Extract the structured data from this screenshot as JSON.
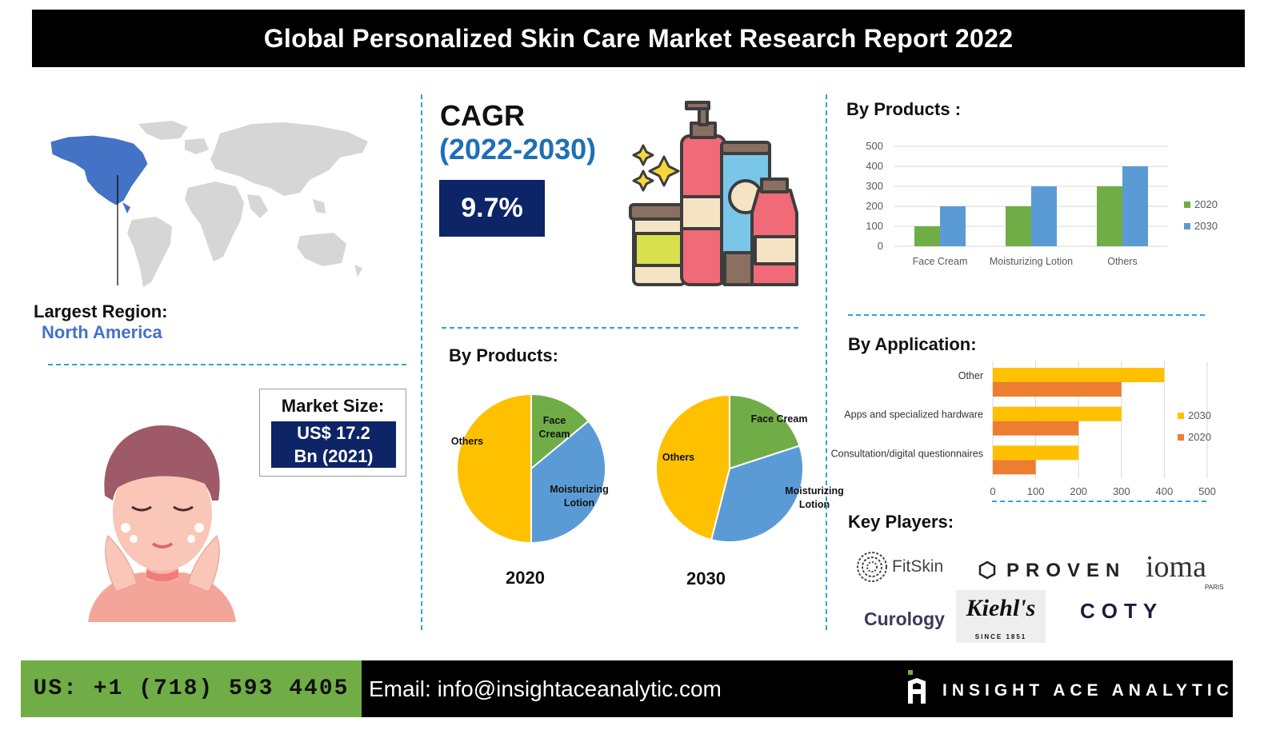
{
  "title": "Global Personalized Skin Care Market Research Report 2022",
  "region": {
    "label": "Largest Region:",
    "value": "North America"
  },
  "market": {
    "label": "Market Size:",
    "line1": "US$ 17.2",
    "line2": "Bn (2021)"
  },
  "cagr": {
    "label": "CAGR",
    "years": "(2022-2030)",
    "value": "9.7%"
  },
  "pies": {
    "title": "By Products:",
    "charts": [
      {
        "year": "2020",
        "slices": [
          {
            "label": "Face Cream",
            "value": 14,
            "color": "#70ad47"
          },
          {
            "label": "Moisturizing Lotion",
            "value": 36,
            "color": "#5b9bd5"
          },
          {
            "label": "Others",
            "value": 50,
            "color": "#ffc000"
          }
        ]
      },
      {
        "year": "2030",
        "slices": [
          {
            "label": "Face Cream",
            "value": 20,
            "color": "#70ad47"
          },
          {
            "label": "Moisturizing Lotion",
            "value": 34,
            "color": "#5b9bd5"
          },
          {
            "label": "Others",
            "value": 46,
            "color": "#ffc000"
          }
        ]
      }
    ]
  },
  "chart_data": [
    {
      "type": "bar",
      "title": "By Products :",
      "categories": [
        "Face Cream",
        "Moisturizing Lotion",
        "Others"
      ],
      "series": [
        {
          "name": "2020",
          "values": [
            100,
            200,
            300
          ],
          "color": "#70ad47"
        },
        {
          "name": "2030",
          "values": [
            200,
            300,
            400
          ],
          "color": "#5b9bd5"
        }
      ],
      "yticks": [
        "0",
        "100",
        "200",
        "300",
        "400",
        "500"
      ],
      "ylim": [
        0,
        500
      ],
      "grid": true,
      "legend": "right"
    },
    {
      "type": "bar",
      "orientation": "horizontal",
      "title": "By Application:",
      "categories": [
        "Other",
        "Apps and specialized hardware",
        "Consultation/digital questionnaires"
      ],
      "series": [
        {
          "name": "2030",
          "values": [
            400,
            300,
            200
          ],
          "color": "#ffc000"
        },
        {
          "name": "2020",
          "values": [
            300,
            200,
            100
          ],
          "color": "#ed7d31"
        }
      ],
      "xticks": [
        "0",
        "100",
        "200",
        "300",
        "400",
        "500"
      ],
      "xlim": [
        0,
        500
      ],
      "grid": true,
      "legend": "right"
    },
    {
      "type": "pie",
      "title": "By Products:",
      "label": "2020",
      "categories": [
        "Face Cream",
        "Moisturizing Lotion",
        "Others"
      ],
      "values": [
        14,
        36,
        50
      ]
    },
    {
      "type": "pie",
      "title": "By Products:",
      "label": "2030",
      "categories": [
        "Face Cream",
        "Moisturizing Lotion",
        "Others"
      ],
      "values": [
        20,
        34,
        46
      ]
    }
  ],
  "key_players": {
    "title": "Key Players:",
    "logos": [
      "FitSkin",
      "PROVEN",
      "ioma",
      "PARIS",
      "Curology",
      "Kiehl's",
      "SINCE 1851",
      "COTY"
    ]
  },
  "footer": {
    "phone": "US: +1 (718) 593 4405",
    "email": "Email: info@insightaceanalytic.com",
    "brand": "INSIGHT ACE ANALYTIC"
  }
}
